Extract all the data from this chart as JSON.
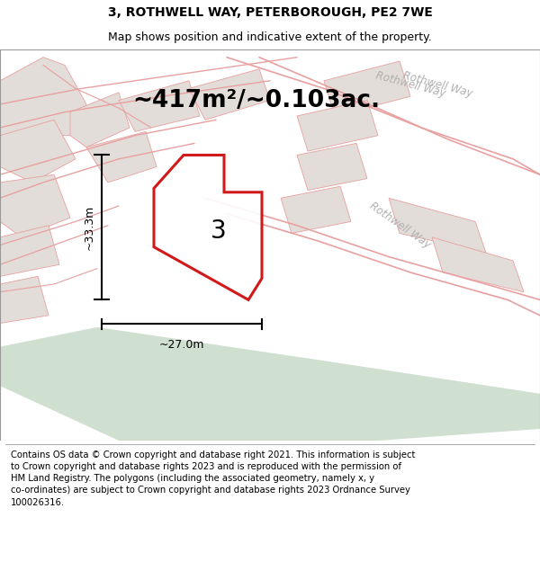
{
  "title": "3, ROTHWELL WAY, PETERBOROUGH, PE2 7WE",
  "subtitle": "Map shows position and indicative extent of the property.",
  "area_text": "~417m²/~0.103ac.",
  "dim_width": "~27.0m",
  "dim_height": "~33.3m",
  "plot_number": "3",
  "footer": "Contains OS data © Crown copyright and database right 2021. This information is subject to Crown copyright and database rights 2023 and is reproduced with the permission of HM Land Registry. The polygons (including the associated geometry, namely x, y co-ordinates) are subject to Crown copyright and database rights 2023 Ordnance Survey 100026316.",
  "map_bg": "#ede9e4",
  "road_line_color": "#e8a0a0",
  "plot_outline_color": "#cc0000",
  "road_label_color": "#b0b0b0",
  "title_fontsize": 10,
  "subtitle_fontsize": 9,
  "area_fontsize": 19,
  "footer_fontsize": 7.2,
  "dim_fontsize": 9
}
